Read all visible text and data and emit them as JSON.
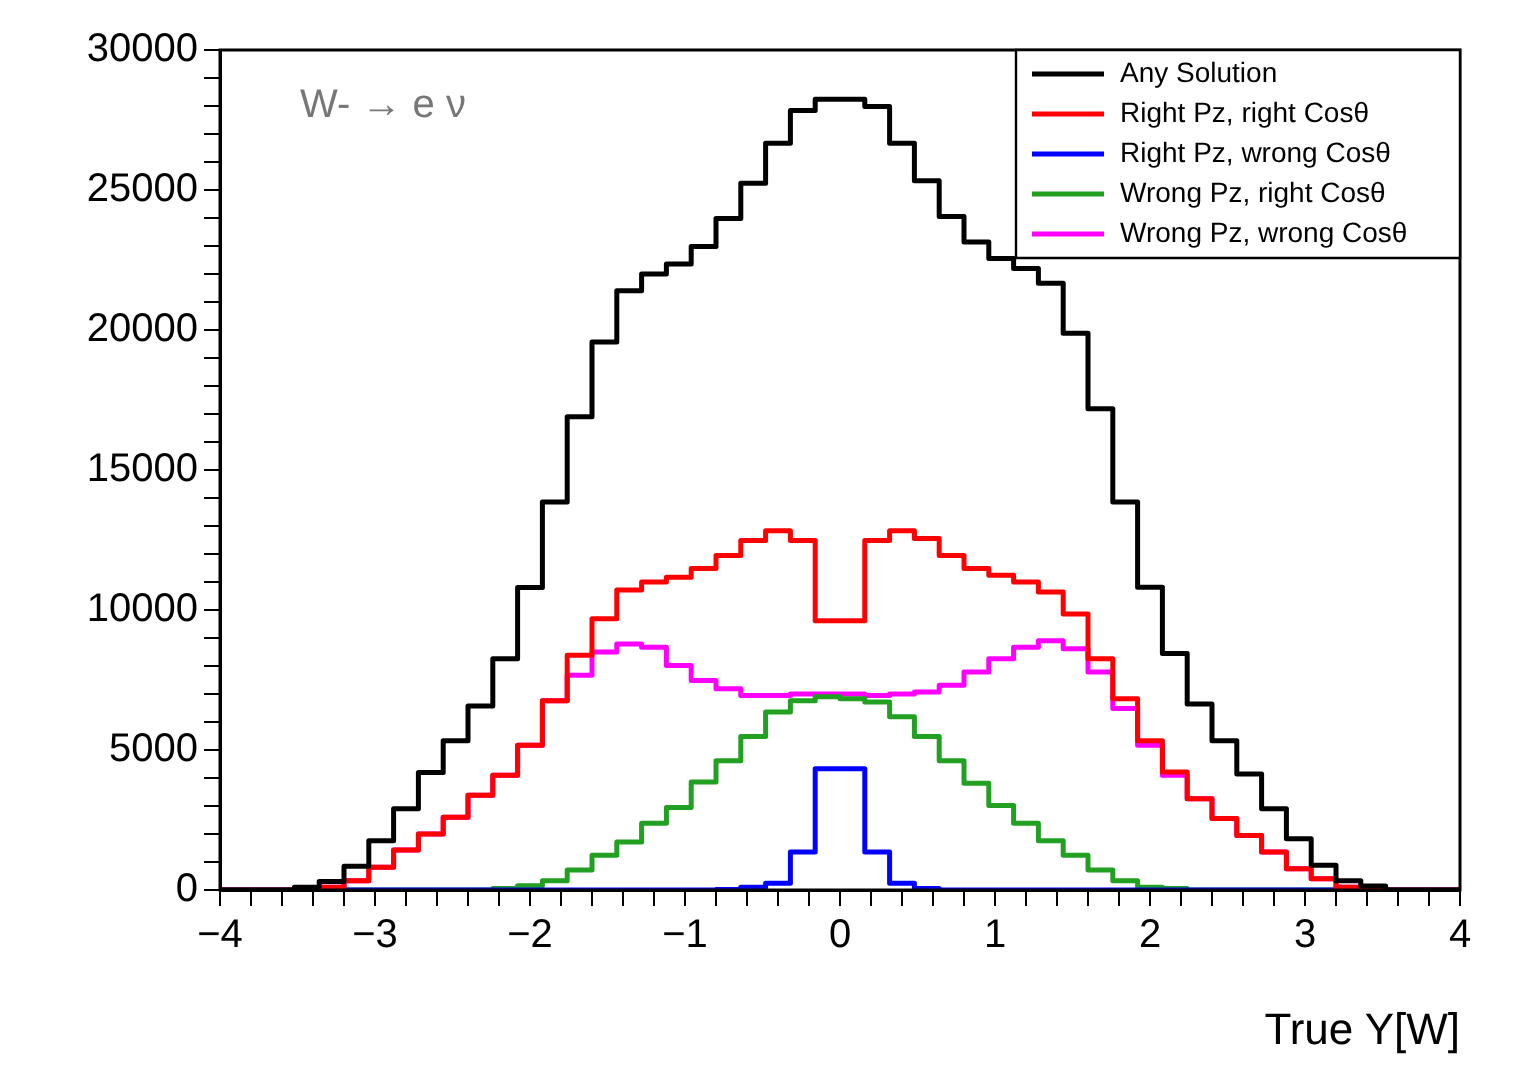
{
  "chart_data": {
    "type": "histogram",
    "xlabel": "True Y[W]",
    "annotations": [
      "W- → e ν"
    ],
    "bins": [
      -4,
      -3.84,
      -3.68,
      -3.52,
      -3.36,
      -3.2,
      -3.04,
      -2.88,
      -2.72,
      -2.56,
      -2.4,
      -2.24,
      -2.08,
      -1.92,
      -1.76,
      -1.6,
      -1.44,
      -1.28,
      -1.12,
      -0.96,
      -0.8,
      -0.64,
      -0.48,
      -0.32,
      -0.16,
      0,
      0.16,
      0.32,
      0.48,
      0.64,
      0.8,
      0.96,
      1.12,
      1.28,
      1.44,
      1.6,
      1.76,
      1.92,
      2.08,
      2.24,
      2.4,
      2.56,
      2.72,
      2.88,
      3.04,
      3.2,
      3.36,
      3.52,
      3.68,
      3.84,
      4
    ],
    "series": [
      {
        "name": "Any Solution",
        "color": "#000000",
        "values": [
          0,
          0,
          0,
          100,
          300,
          850,
          1760,
          2900,
          4200,
          5330,
          6570,
          8260,
          10800,
          13860,
          16900,
          19570,
          21400,
          22000,
          22360,
          22980,
          23980,
          25240,
          26670,
          27840,
          28240,
          28240,
          27980,
          26670,
          25330,
          24050,
          23140,
          22550,
          22200,
          21670,
          19880,
          17190,
          13860,
          10810,
          8450,
          6640,
          5330,
          4140,
          2900,
          1830,
          880,
          330,
          140,
          0,
          0,
          0
        ]
      },
      {
        "name": "Right Pz, right Cosθ",
        "color": "#ff0000",
        "values": [
          0,
          0,
          0,
          50,
          100,
          330,
          810,
          1430,
          2000,
          2600,
          3380,
          4100,
          5170,
          6760,
          8380,
          9690,
          10710,
          11000,
          11170,
          11480,
          11950,
          12480,
          12830,
          12480,
          9620,
          9620,
          12480,
          12830,
          12550,
          11950,
          11480,
          11240,
          11000,
          10640,
          9860,
          8260,
          6830,
          5330,
          4210,
          3260,
          2550,
          1950,
          1360,
          760,
          400,
          100,
          50,
          0,
          0,
          0
        ]
      },
      {
        "name": "Right Pz, wrong Cosθ",
        "color": "#0000ff",
        "values": [
          0,
          0,
          0,
          0,
          0,
          0,
          0,
          0,
          0,
          0,
          0,
          0,
          0,
          0,
          0,
          0,
          0,
          0,
          0,
          0,
          20,
          100,
          240,
          1360,
          4330,
          4330,
          1360,
          240,
          50,
          0,
          0,
          0,
          0,
          0,
          0,
          0,
          0,
          0,
          0,
          0,
          0,
          0,
          0,
          0,
          0,
          0,
          0,
          0,
          0,
          0
        ]
      },
      {
        "name": "Wrong Pz, right Cosθ",
        "color": "#22a022",
        "values": [
          0,
          0,
          0,
          0,
          0,
          0,
          0,
          0,
          0,
          0,
          0,
          50,
          150,
          330,
          710,
          1240,
          1710,
          2380,
          2950,
          3860,
          4620,
          5480,
          6360,
          6760,
          6900,
          6830,
          6710,
          6190,
          5480,
          4620,
          3810,
          3020,
          2380,
          1760,
          1240,
          710,
          330,
          100,
          50,
          0,
          0,
          0,
          0,
          0,
          0,
          0,
          0,
          0,
          0,
          0
        ]
      },
      {
        "name": "Wrong Pz, wrong Cosθ",
        "color": "#ff00ff",
        "values": [
          0,
          0,
          0,
          50,
          100,
          330,
          810,
          1430,
          2000,
          2600,
          3380,
          4100,
          5170,
          6760,
          7670,
          8500,
          8790,
          8670,
          8020,
          7480,
          7190,
          6950,
          6950,
          7000,
          7000,
          7000,
          6950,
          7000,
          7070,
          7310,
          7790,
          8260,
          8670,
          8900,
          8620,
          7790,
          6480,
          5170,
          4100,
          3260,
          2550,
          1950,
          1360,
          760,
          400,
          100,
          50,
          0,
          0,
          0
        ]
      }
    ],
    "xlim": [
      -4,
      4
    ],
    "xticks": [
      -4,
      {
        "value": -3.8,
        "label": null
      },
      {
        "value": -3.6,
        "label": null
      },
      {
        "value": -3.4,
        "label": null
      },
      {
        "value": -3.2,
        "label": null
      },
      -3,
      {
        "value": -2.8,
        "label": null
      },
      {
        "value": -2.6,
        "label": null
      },
      {
        "value": -2.4,
        "label": null
      },
      {
        "value": -2.2,
        "label": null
      },
      -2,
      {
        "value": -1.8,
        "label": null
      },
      {
        "value": -1.6,
        "label": null
      },
      {
        "value": -1.4,
        "label": null
      },
      {
        "value": -1.2,
        "label": null
      },
      -1,
      {
        "value": -0.8,
        "label": null
      },
      {
        "value": -0.6,
        "label": null
      },
      {
        "value": -0.4,
        "label": null
      },
      {
        "value": -0.2,
        "label": null
      },
      0,
      {
        "value": 0.2,
        "label": null
      },
      {
        "value": 0.4,
        "label": null
      },
      {
        "value": 0.6,
        "label": null
      },
      {
        "value": 0.8,
        "label": null
      },
      1,
      {
        "value": 1.2,
        "label": null
      },
      {
        "value": 1.4,
        "label": null
      },
      {
        "value": 1.6,
        "label": null
      },
      {
        "value": 1.8,
        "label": null
      },
      2,
      {
        "value": 2.2,
        "label": null
      },
      {
        "value": 2.4,
        "label": null
      },
      {
        "value": 2.6,
        "label": null
      },
      {
        "value": 2.8,
        "label": null
      },
      3,
      {
        "value": 3.2,
        "label": null
      },
      {
        "value": 3.4,
        "label": null
      },
      {
        "value": 3.6,
        "label": null
      },
      {
        "value": 3.8,
        "label": null
      },
      4
    ],
    "ylim": [
      0,
      30000
    ],
    "yticks": [
      0,
      {
        "value": 1000,
        "label": null
      },
      {
        "value": 2000,
        "label": null
      },
      {
        "value": 3000,
        "label": null
      },
      {
        "value": 4000,
        "label": null
      },
      5000,
      {
        "value": 6000,
        "label": null
      },
      {
        "value": 7000,
        "label": null
      },
      {
        "value": 8000,
        "label": null
      },
      {
        "value": 9000,
        "label": null
      },
      10000,
      {
        "value": 11000,
        "label": null
      },
      {
        "value": 12000,
        "label": null
      },
      {
        "value": 13000,
        "label": null
      },
      {
        "value": 14000,
        "label": null
      },
      15000,
      {
        "value": 16000,
        "label": null
      },
      {
        "value": 17000,
        "label": null
      },
      {
        "value": 18000,
        "label": null
      },
      {
        "value": 19000,
        "label": null
      },
      20000,
      {
        "value": 21000,
        "label": null
      },
      {
        "value": 22000,
        "label": null
      },
      {
        "value": 23000,
        "label": null
      },
      {
        "value": 24000,
        "label": null
      },
      25000,
      {
        "value": 26000,
        "label": null
      },
      {
        "value": 27000,
        "label": null
      },
      {
        "value": 28000,
        "label": null
      },
      {
        "value": 29000,
        "label": null
      },
      30000
    ],
    "legend": "top right"
  }
}
